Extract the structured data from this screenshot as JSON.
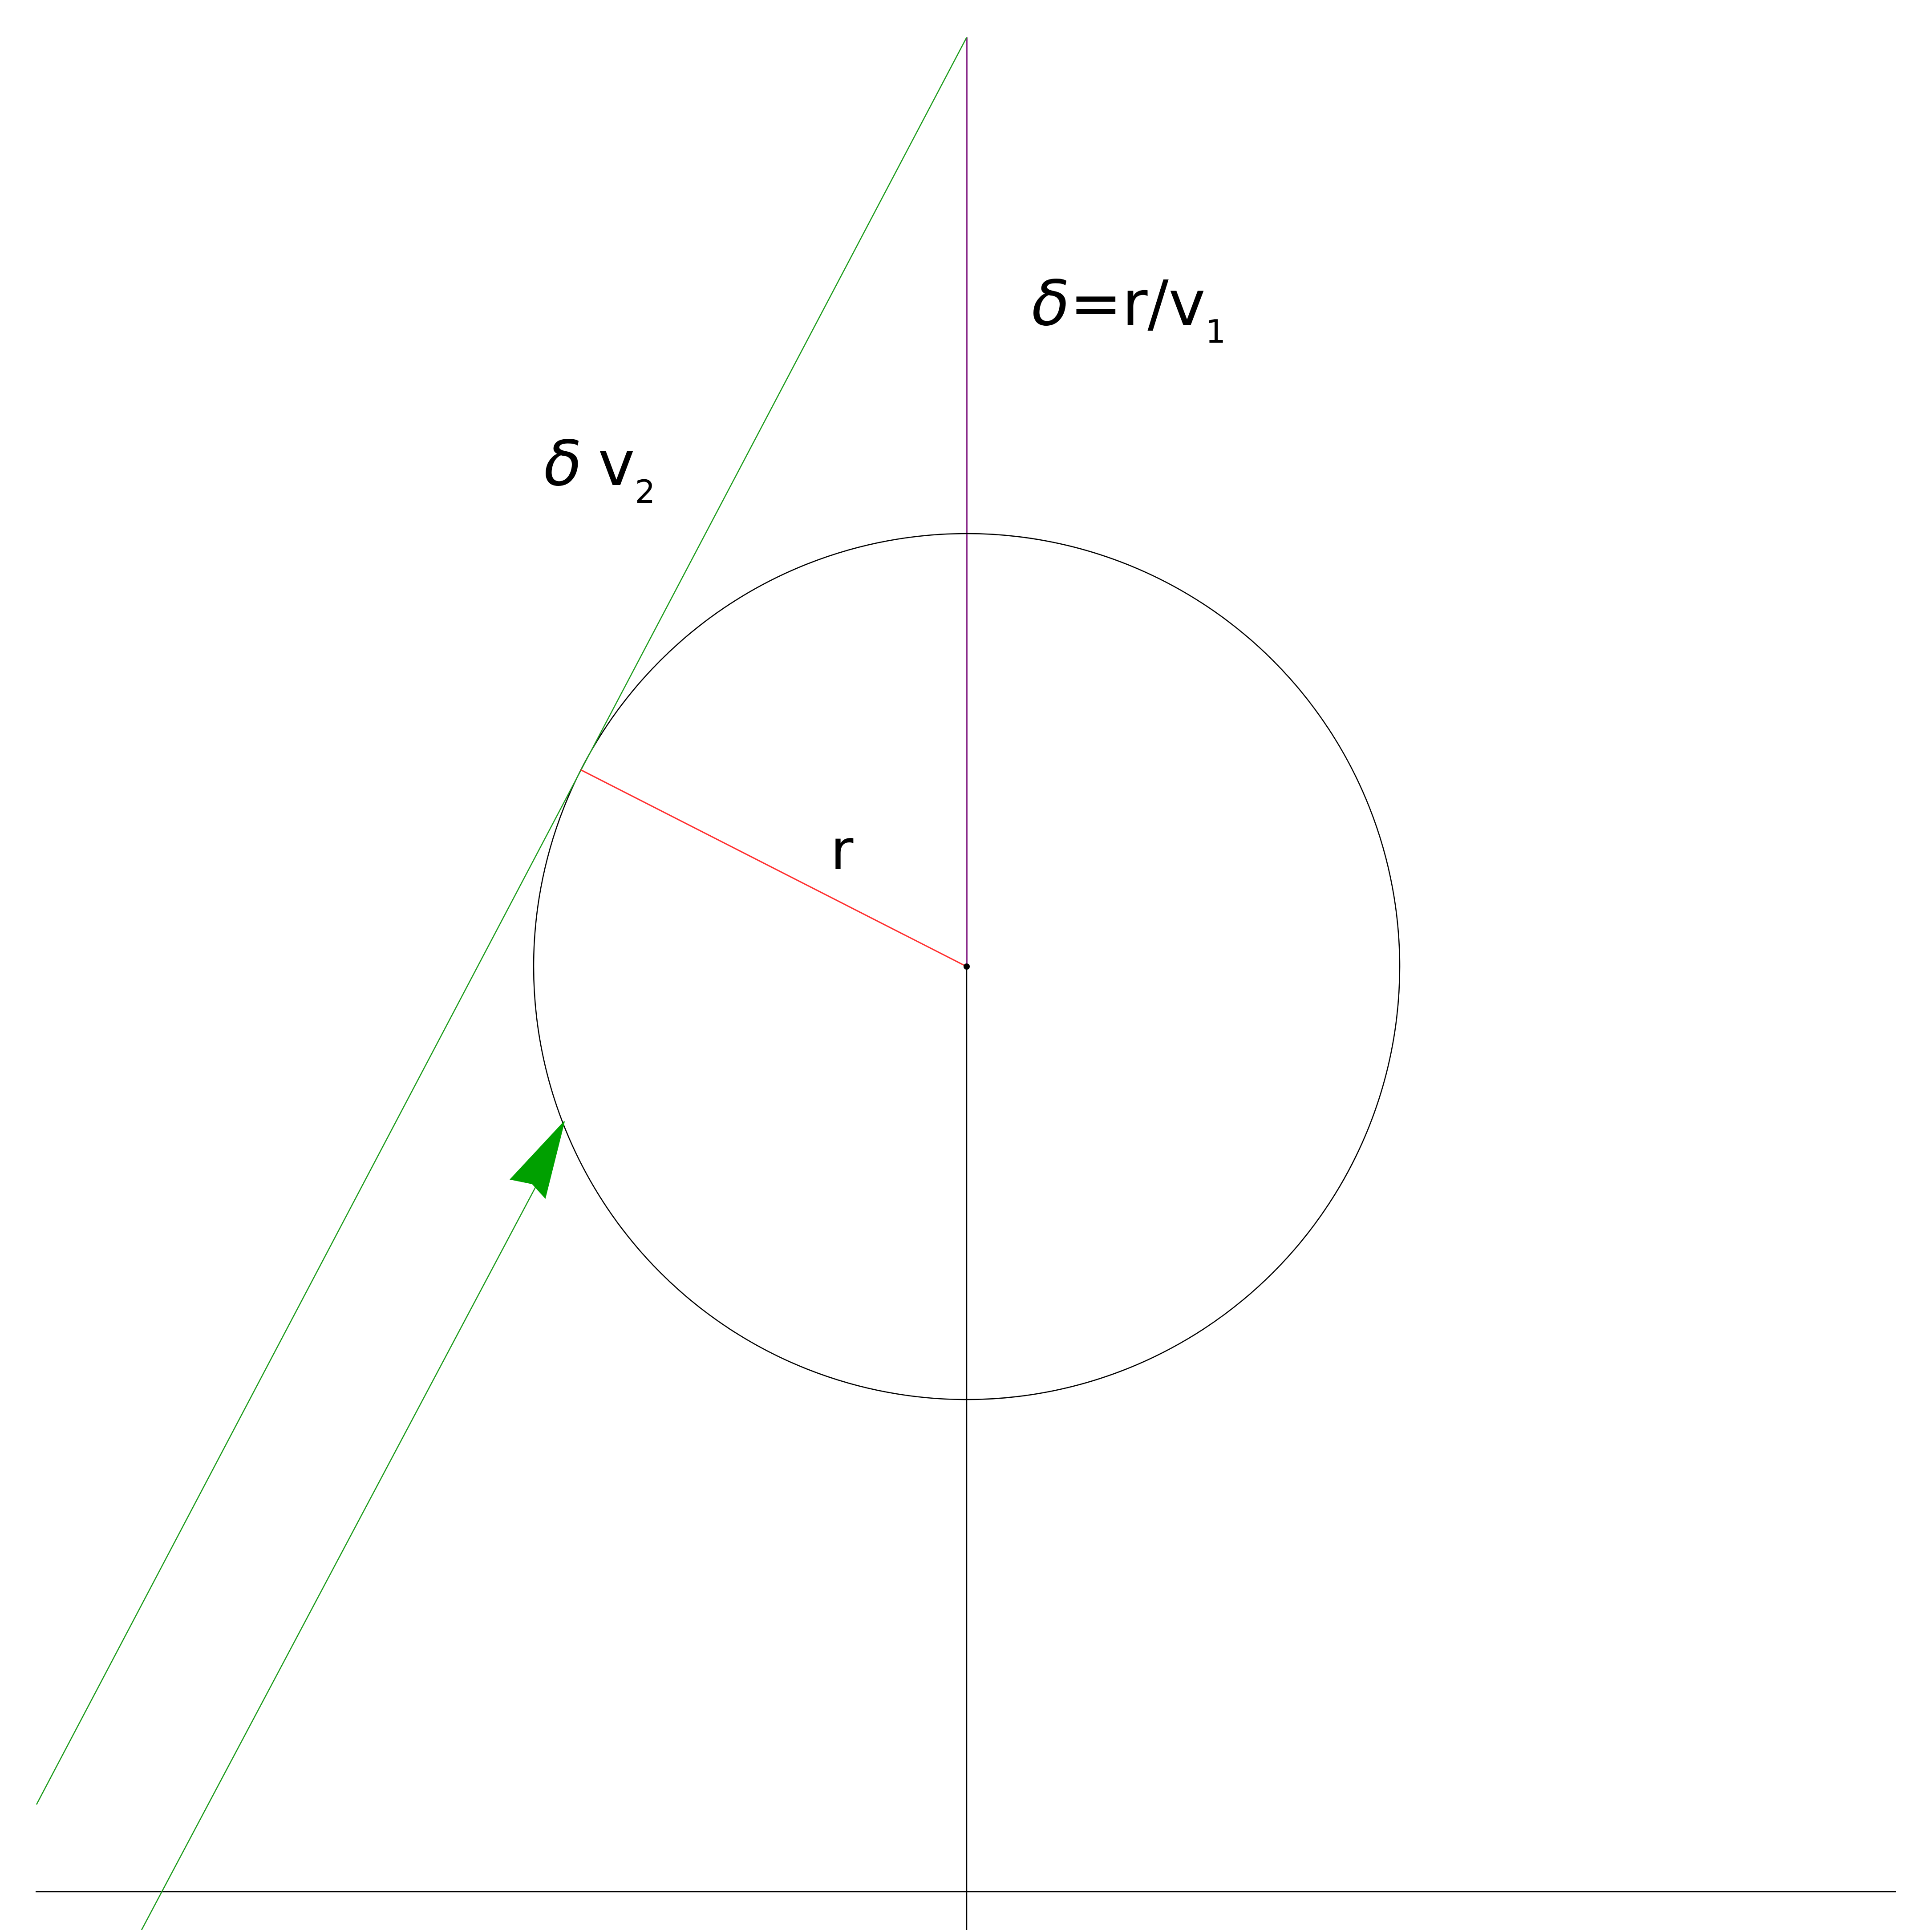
{
  "diagram": {
    "labels": {
      "radius": "r",
      "delta_symbol": "δ",
      "delta_definition_rest": "=r/v",
      "delta_definition_subscript": "1",
      "tangent_speed_base": "v",
      "tangent_speed_subscript": "2"
    },
    "colors": {
      "background": "#ffffff",
      "circle_and_axes": "#000000",
      "tangent_lines": "#1a9a1a",
      "arrowhead": "#00a000",
      "radius_line": "#ff3030",
      "vertical_segment": "#8a2a8a"
    }
  }
}
